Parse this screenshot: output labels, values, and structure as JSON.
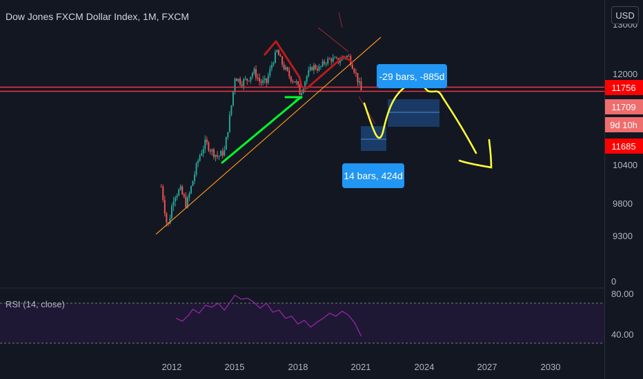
{
  "header": {
    "title": "Dow Jones FXCM Dollar Index, 1M, FXCM",
    "currency_button": "USD"
  },
  "indicator": {
    "label": "RSI (14, close)"
  },
  "annotations": {
    "measure_upper": "-29 bars, -885d",
    "measure_lower": "14 bars, 424d"
  },
  "colors": {
    "background": "#131722",
    "candle_up": "#26a69a",
    "candle_down": "#ef5350",
    "horizontal_line": "#f23645",
    "price_tag": "#ff0000",
    "callout": "#2196f3",
    "trendline": "#f7931a",
    "green_drawing": "#00ff2a",
    "yellow_drawing": "#ffff33",
    "rsi_line": "#9c27b0"
  },
  "chart_data": {
    "type": "candlestick",
    "title": "Dow Jones FXCM Dollar Index, 1M, FXCM",
    "x_ticks": [
      "2012",
      "2015",
      "2018",
      "2021",
      "2024",
      "2027",
      "2030"
    ],
    "y_ticks": [
      "13000",
      "12000",
      "11756",
      "11709",
      "10400",
      "9800",
      "9300",
      "0"
    ],
    "price_tags": [
      {
        "label": "11756",
        "value": 11756
      },
      {
        "label": "11709",
        "value": 11709
      },
      {
        "label": "9d 10h"
      },
      {
        "label": "11685",
        "value": 11685
      }
    ],
    "close_series": {
      "x": [
        2011.5,
        2011.8,
        2012.1,
        2012.4,
        2012.7,
        2013.0,
        2013.3,
        2013.6,
        2013.9,
        2014.2,
        2014.5,
        2014.8,
        2015.0,
        2015.3,
        2015.6,
        2015.9,
        2016.2,
        2016.5,
        2016.8,
        2017.0,
        2017.3,
        2017.6,
        2017.9,
        2018.1,
        2018.4,
        2018.7,
        2019.0,
        2019.3,
        2019.6,
        2019.9,
        2020.2,
        2020.4,
        2020.7,
        2021.0
      ],
      "y": [
        10050,
        9400,
        9900,
        10000,
        9750,
        10150,
        10550,
        10800,
        10650,
        10550,
        10650,
        11350,
        11950,
        11850,
        11900,
        12050,
        11850,
        11850,
        12250,
        12450,
        12150,
        11950,
        11850,
        11650,
        11950,
        12150,
        12100,
        12250,
        12300,
        12250,
        12350,
        12350,
        12050,
        11700
      ]
    },
    "rsi": {
      "label": "RSI (14, close)",
      "levels": [
        30,
        70
      ],
      "y_ticks": [
        "80.00",
        "40.00"
      ],
      "x": [
        2012.2,
        2012.5,
        2012.8,
        2013.0,
        2013.3,
        2013.6,
        2013.9,
        2014.2,
        2014.5,
        2014.8,
        2015.0,
        2015.3,
        2015.6,
        2015.9,
        2016.2,
        2016.5,
        2016.8,
        2017.1,
        2017.4,
        2017.7,
        2018.0,
        2018.3,
        2018.6,
        2018.9,
        2019.2,
        2019.5,
        2019.8,
        2020.1,
        2020.4,
        2020.7,
        2021.0
      ],
      "values": [
        55,
        52,
        58,
        64,
        60,
        68,
        66,
        70,
        63,
        72,
        78,
        74,
        75,
        71,
        65,
        70,
        61,
        63,
        55,
        57,
        49,
        53,
        46,
        51,
        55,
        60,
        57,
        62,
        58,
        50,
        37
      ]
    }
  }
}
